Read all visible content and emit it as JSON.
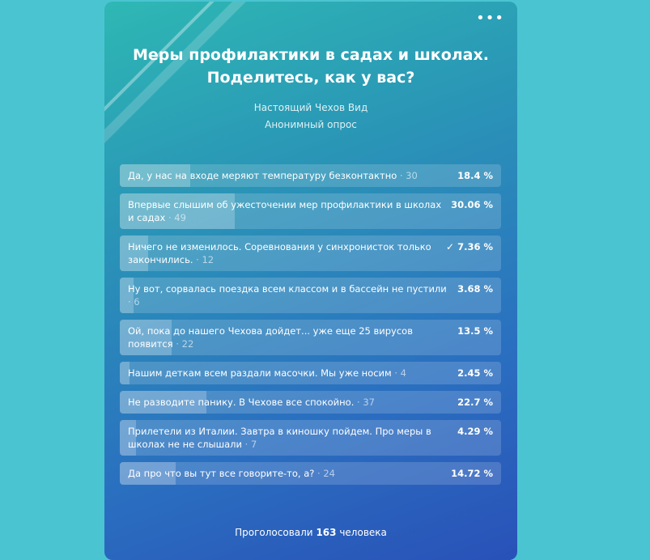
{
  "poll": {
    "title": "Меры профилактики в садах и школах. Поделитесь, как у вас?",
    "author": "Настоящий Чехов Вид",
    "type": "Анонимный опрос",
    "more_icon": "more-horizontal-icon",
    "options": [
      {
        "text": "Да, у нас на входе меряют температуру безконтактно",
        "count": "· 30",
        "percent": "18.4 %",
        "share": 0.184,
        "checked": false
      },
      {
        "text": "Впервые слышим об ужесточении мер профилактики в школах и садах",
        "count": "· 49",
        "percent": "30.06 %",
        "share": 0.3006,
        "checked": false
      },
      {
        "text": "Ничего не изменилось. Соревнования у синхронисток только закончились.",
        "count": "· 12",
        "percent": "7.36 %",
        "share": 0.0736,
        "checked": true
      },
      {
        "text": "Ну вот, сорвалась поездка всем классом и в бассейн не пустили",
        "count": "· 6",
        "percent": "3.68 %",
        "share": 0.0368,
        "checked": false
      },
      {
        "text": "Ой, пока до нашего Чехова дойдет... уже еще 25 вирусов появится",
        "count": "· 22",
        "percent": "13.5 %",
        "share": 0.135,
        "checked": false
      },
      {
        "text": "Нашим деткам всем раздали масочки. Мы уже носим",
        "count": "· 4",
        "percent": "2.45 %",
        "share": 0.0245,
        "checked": false
      },
      {
        "text": "Не разводите панику. В Чехове все спокойно.",
        "count": "· 37",
        "percent": "22.7 %",
        "share": 0.227,
        "checked": false
      },
      {
        "text": "Прилетели из Италии. Завтра в киношку пойдем. Про меры в школах не не слышали",
        "count": "· 7",
        "percent": "4.29 %",
        "share": 0.0429,
        "checked": false
      },
      {
        "text": "Да про что вы тут все говорите-то, а?",
        "count": "· 24",
        "percent": "14.72 %",
        "share": 0.1472,
        "checked": false
      }
    ],
    "footer_prefix": "Проголосовали",
    "footer_count": "163",
    "footer_suffix": "человека"
  }
}
